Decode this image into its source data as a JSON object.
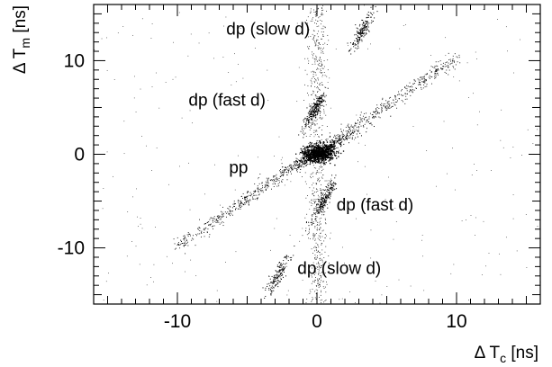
{
  "chart_data": {
    "type": "scatter",
    "title": "",
    "xlabel": "Δ T_c [ns]",
    "ylabel": "Δ T_m [ns]",
    "xlabel_parts": {
      "main": "Δ T",
      "sub": "c",
      "unit": " [ns]"
    },
    "ylabel_parts": {
      "main": "Δ T",
      "sub": "m",
      "unit": " [ns]"
    },
    "xlim": [
      -16,
      16
    ],
    "ylim": [
      -16,
      16
    ],
    "x_ticks": [
      -10,
      0,
      10
    ],
    "y_ticks": [
      -10,
      0,
      10
    ],
    "x_tick_labels": [
      "-10",
      "0",
      "10"
    ],
    "y_tick_labels": [
      "-10",
      "0",
      "10"
    ],
    "grid": false,
    "marker_color": "#000000",
    "clusters": [
      {
        "name": "pp",
        "center": [
          0.1,
          0.2
        ],
        "shape": "dense core on diagonal band"
      },
      {
        "name": "pp band",
        "from": [
          -10,
          -9.5
        ],
        "to": [
          10,
          10.5
        ]
      },
      {
        "name": "dp (fast d) upper",
        "center": [
          -0.2,
          4.8
        ]
      },
      {
        "name": "dp (slow d) upper",
        "center": [
          3.2,
          13.2
        ]
      },
      {
        "name": "dp (fast d) lower",
        "center": [
          0.5,
          -4.8
        ]
      },
      {
        "name": "dp (slow d) lower",
        "center": [
          -2.8,
          -12.8
        ]
      }
    ],
    "annotations": [
      {
        "text": "dp (slow d)",
        "x": -6.5,
        "y": 12.8
      },
      {
        "text": "dp (fast d)",
        "x": -9.2,
        "y": 5.2
      },
      {
        "text": "pp",
        "x": -6.3,
        "y": -2.0
      },
      {
        "text": "dp (fast d)",
        "x": 1.4,
        "y": -6.0
      },
      {
        "text": "dp (slow d)",
        "x": -1.4,
        "y": -12.8
      }
    ]
  }
}
